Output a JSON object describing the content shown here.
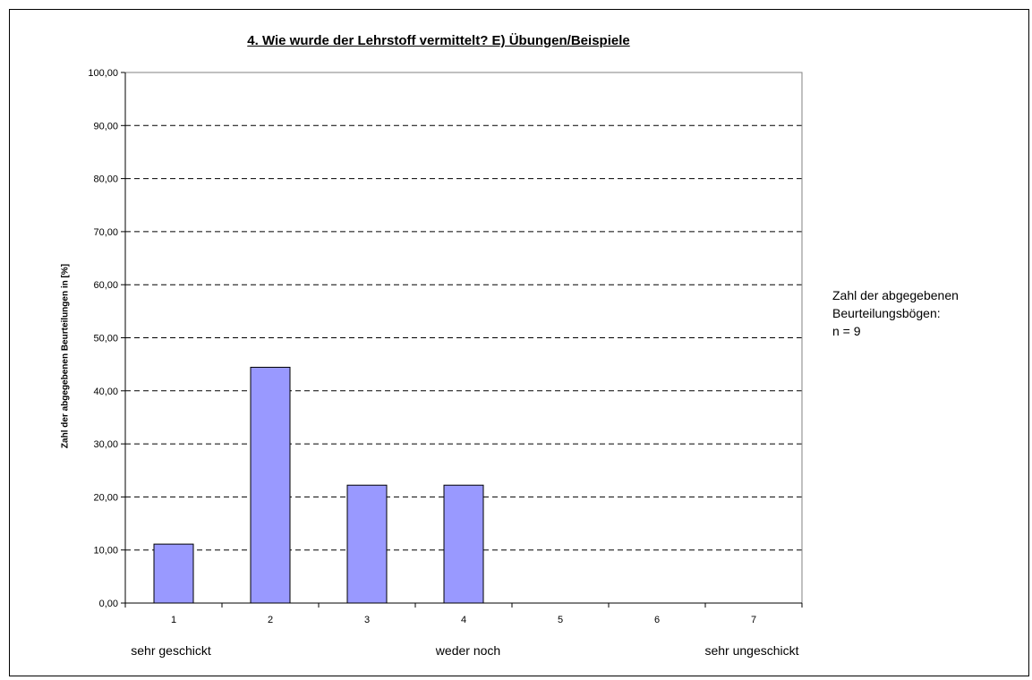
{
  "chart_data": {
    "type": "bar",
    "title": "4. Wie wurde der Lehrstoff vermittelt?   E) Übungen/Beispiele",
    "ylabel": "Zahl der abgegebenen Beurteilungen in [%]",
    "xlabel": "",
    "categories": [
      "1",
      "2",
      "3",
      "4",
      "5",
      "6",
      "7"
    ],
    "values": [
      11.11,
      44.44,
      22.22,
      22.22,
      0,
      0,
      0
    ],
    "ylim": [
      0,
      100
    ],
    "yticks": [
      "0,00",
      "10,00",
      "20,00",
      "30,00",
      "40,00",
      "50,00",
      "60,00",
      "70,00",
      "80,00",
      "90,00",
      "100,00"
    ],
    "grid": true,
    "bar_color": "#9999ff",
    "scale_labels": {
      "left": "sehr geschickt",
      "middle": "weder noch",
      "right": "sehr ungeschickt"
    },
    "note": {
      "line1": "Zahl der abgegebenen",
      "line2": "Beurteilungsbögen:",
      "line3": "n = 9"
    }
  }
}
